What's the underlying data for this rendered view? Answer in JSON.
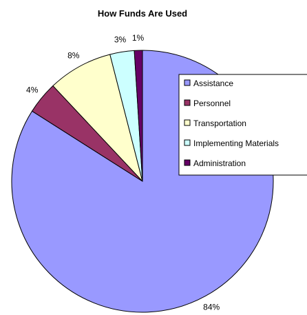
{
  "chart_data": {
    "type": "pie",
    "title": "How Funds Are Used",
    "slices": [
      {
        "label": "Assistance",
        "value": 84,
        "value_label": "84%",
        "color": "#9999ff"
      },
      {
        "label": "Personnel",
        "value": 4,
        "value_label": "4%",
        "color": "#993366"
      },
      {
        "label": "Transportation",
        "value": 8,
        "value_label": "8%",
        "color": "#ffffcc"
      },
      {
        "label": "Implementing Materials",
        "value": 3,
        "value_label": "3%",
        "color": "#ccffff"
      },
      {
        "label": "Administration",
        "value": 1,
        "value_label": "1%",
        "color": "#660066"
      }
    ],
    "legend_position": "right"
  }
}
